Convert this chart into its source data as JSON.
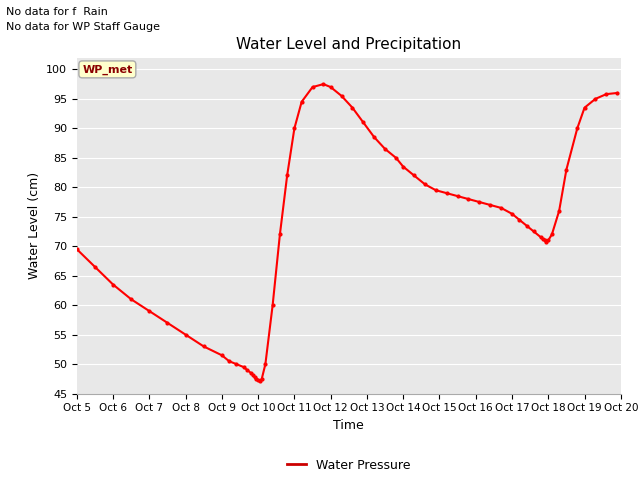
{
  "title": "Water Level and Precipitation",
  "xlabel": "Time",
  "ylabel": "Water Level (cm)",
  "ylim": [
    45,
    102
  ],
  "yticks": [
    45,
    50,
    55,
    60,
    65,
    70,
    75,
    80,
    85,
    90,
    95,
    100
  ],
  "line_color": "#ff0000",
  "line_width": 1.5,
  "marker": "o",
  "marker_size": 2,
  "bg_color": "#e8e8e8",
  "legend_label": "Water Pressure",
  "legend_line_color": "#cc0000",
  "no_data_text1": "No data for f  Rain",
  "no_data_text2": "No data for WP Staff Gauge",
  "wp_met_label": "WP_met",
  "x_tick_labels": [
    "Oct 5",
    "Oct 6",
    "Oct 7",
    "Oct 8",
    "Oct 9",
    "Oct 10",
    "Oct 11",
    "Oct 12",
    "Oct 13",
    "Oct 14",
    "Oct 15",
    "Oct 16",
    "Oct 17",
    "Oct 18",
    "Oct 19",
    "Oct 20"
  ],
  "x_values": [
    5,
    5.5,
    6,
    6.5,
    7,
    7.5,
    8,
    8.5,
    9,
    9.2,
    9.4,
    9.6,
    9.7,
    9.8,
    9.85,
    9.9,
    9.95,
    10.0,
    10.05,
    10.1,
    10.2,
    10.4,
    10.6,
    10.8,
    11.0,
    11.2,
    11.5,
    11.8,
    12.0,
    12.3,
    12.6,
    12.9,
    13.2,
    13.5,
    13.8,
    14.0,
    14.3,
    14.6,
    14.9,
    15.2,
    15.5,
    15.8,
    16.1,
    16.4,
    16.7,
    17.0,
    17.2,
    17.4,
    17.6,
    17.8,
    17.85,
    17.9,
    17.95,
    18.0,
    18.1,
    18.3,
    18.5,
    18.8,
    19.0,
    19.3,
    19.6,
    19.9
  ],
  "y_values": [
    69.5,
    66.5,
    63.5,
    61.0,
    59.0,
    57.0,
    55.0,
    53.0,
    51.5,
    50.5,
    50.0,
    49.5,
    49.0,
    48.5,
    48.2,
    47.8,
    47.5,
    47.3,
    47.2,
    47.5,
    50.0,
    60.0,
    72.0,
    82.0,
    90.0,
    94.5,
    97.0,
    97.5,
    97.0,
    95.5,
    93.5,
    91.0,
    88.5,
    86.5,
    85.0,
    83.5,
    82.0,
    80.5,
    79.5,
    79.0,
    78.5,
    78.0,
    77.5,
    77.0,
    76.5,
    75.5,
    74.5,
    73.5,
    72.5,
    71.5,
    71.2,
    71.0,
    70.8,
    71.0,
    72.0,
    76.0,
    83.0,
    90.0,
    93.5,
    95.0,
    95.8,
    96.0
  ]
}
